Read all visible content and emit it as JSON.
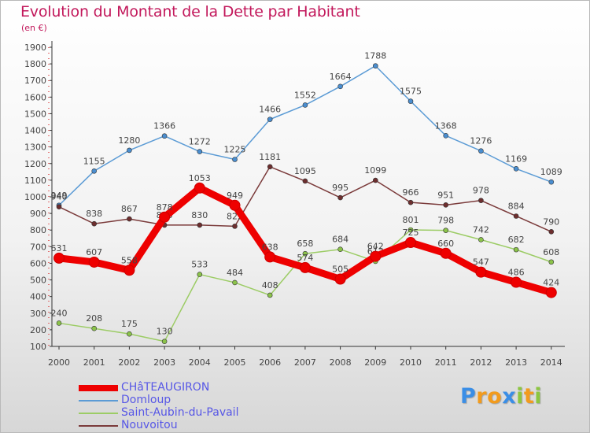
{
  "title": "Evolution du Montant de la Dette par Habitant",
  "unit_label": "(en €)",
  "logo": {
    "letters": [
      "P",
      "r",
      "o",
      "x",
      "i",
      "t",
      "i"
    ],
    "colors": [
      "#3a8ee6",
      "#f29b1d",
      "#f29b1d",
      "#3a8ee6",
      "#8cc63f",
      "#f29b1d",
      "#8cc63f"
    ]
  },
  "chart_data": {
    "type": "line",
    "x": [
      "2000",
      "2001",
      "2002",
      "2003",
      "2004",
      "2005",
      "2006",
      "2007",
      "2008",
      "2009",
      "2010",
      "2011",
      "2012",
      "2013",
      "2014"
    ],
    "ylim": [
      100,
      1900
    ],
    "yticks": [
      100,
      200,
      300,
      400,
      500,
      600,
      700,
      800,
      900,
      1000,
      1100,
      1200,
      1300,
      1400,
      1500,
      1600,
      1700,
      1800,
      1900
    ],
    "grid": false,
    "legend_position": "bottom-left",
    "series": [
      {
        "name": "CHâTEAUGIRON",
        "color": "#ee0000",
        "marker_color": "#ee0000",
        "thick": true,
        "values": [
          631,
          607,
          558,
          878,
          1053,
          949,
          638,
          574,
          505,
          642,
          725,
          660,
          547,
          486,
          424
        ]
      },
      {
        "name": "Domloup",
        "color": "#5b9bd5",
        "marker_color": "#4a8ed0",
        "thick": false,
        "values": [
          949,
          1155,
          1280,
          1366,
          1272,
          1225,
          1466,
          1552,
          1664,
          1788,
          1575,
          1368,
          1276,
          1169,
          1089
        ]
      },
      {
        "name": "Saint-Aubin-du-Pavail",
        "color": "#9ccc65",
        "marker_color": "#8bc34a",
        "thick": false,
        "values": [
          240,
          208,
          175,
          130,
          533,
          484,
          408,
          658,
          684,
          612,
          801,
          798,
          742,
          682,
          608
        ]
      },
      {
        "name": "Nouvoitou",
        "color": "#7b3b3b",
        "marker_color": "#6d2e2e",
        "thick": false,
        "values": [
          940,
          838,
          867,
          830,
          830,
          823,
          1181,
          1095,
          995,
          1099,
          966,
          951,
          978,
          884,
          790
        ]
      }
    ]
  }
}
